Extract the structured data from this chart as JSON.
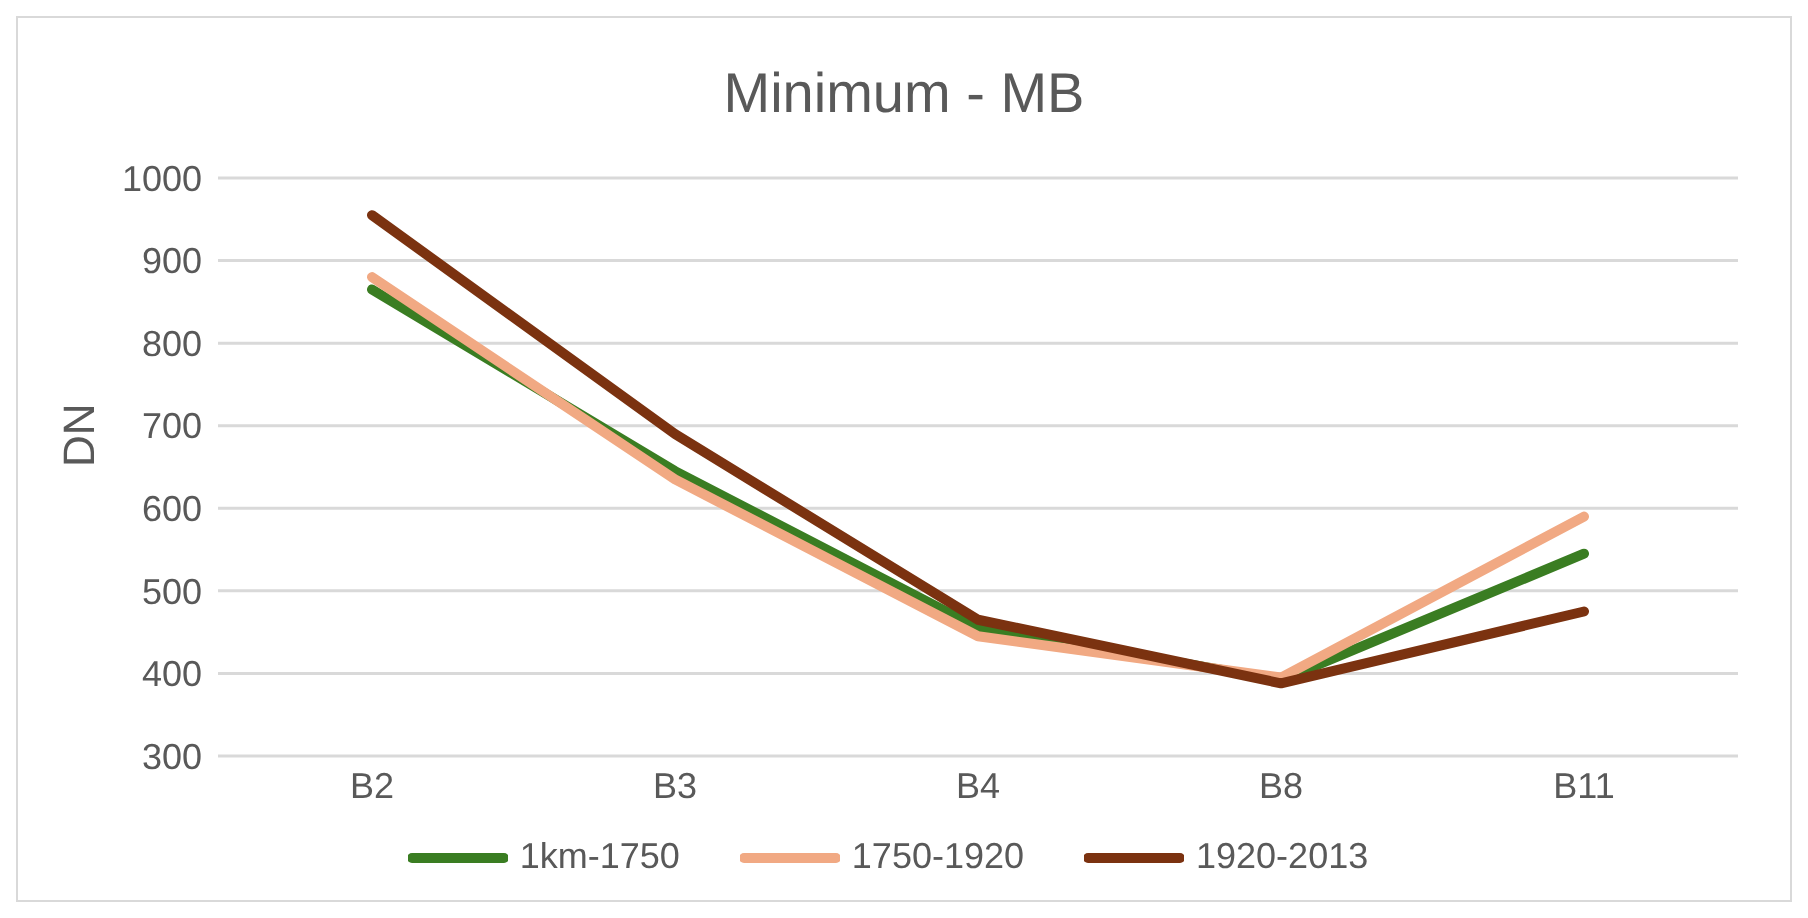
{
  "chart_data": {
    "type": "line",
    "title": "Minimum - MB",
    "ylabel": "DN",
    "categories": [
      "B2",
      "B3",
      "B4",
      "B8",
      "B11"
    ],
    "series": [
      {
        "name": "1km-1750",
        "color": "#3a7d22",
        "values": [
          865,
          645,
          455,
          392,
          545
        ]
      },
      {
        "name": "1750-1920",
        "color": "#f1a983",
        "values": [
          880,
          635,
          445,
          395,
          590
        ]
      },
      {
        "name": "1920-2013",
        "color": "#7b3210",
        "values": [
          955,
          690,
          465,
          388,
          475
        ]
      }
    ],
    "ylim": [
      300,
      1000
    ],
    "yticks": [
      300,
      400,
      500,
      600,
      700,
      800,
      900,
      1000
    ],
    "grid": "y",
    "legend": "bottom",
    "marker": "none",
    "line_style": "solid"
  }
}
